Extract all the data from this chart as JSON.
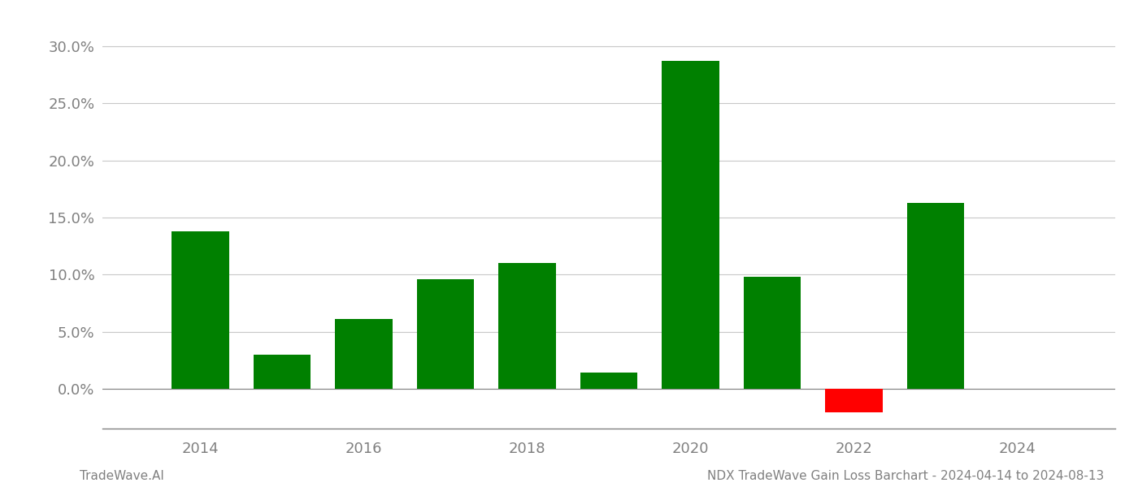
{
  "years": [
    2014,
    2015,
    2016,
    2017,
    2018,
    2019,
    2020,
    2021,
    2022,
    2023
  ],
  "values": [
    0.138,
    0.03,
    0.061,
    0.096,
    0.11,
    0.014,
    0.287,
    0.098,
    -0.021,
    0.163
  ],
  "bar_colors": [
    "#008000",
    "#008000",
    "#008000",
    "#008000",
    "#008000",
    "#008000",
    "#008000",
    "#008000",
    "#ff0000",
    "#008000"
  ],
  "ylim_min": -0.035,
  "ylim_max": 0.315,
  "yticks": [
    0.0,
    0.05,
    0.1,
    0.15,
    0.2,
    0.25,
    0.3
  ],
  "xtick_years": [
    2014,
    2016,
    2018,
    2020,
    2022,
    2024
  ],
  "xlim_min": 2012.8,
  "xlim_max": 2025.2,
  "footer_left": "TradeWave.AI",
  "footer_right": "NDX TradeWave Gain Loss Barchart - 2024-04-14 to 2024-08-13",
  "background_color": "#ffffff",
  "grid_color": "#c8c8c8",
  "text_color": "#808080",
  "bar_width": 0.7
}
